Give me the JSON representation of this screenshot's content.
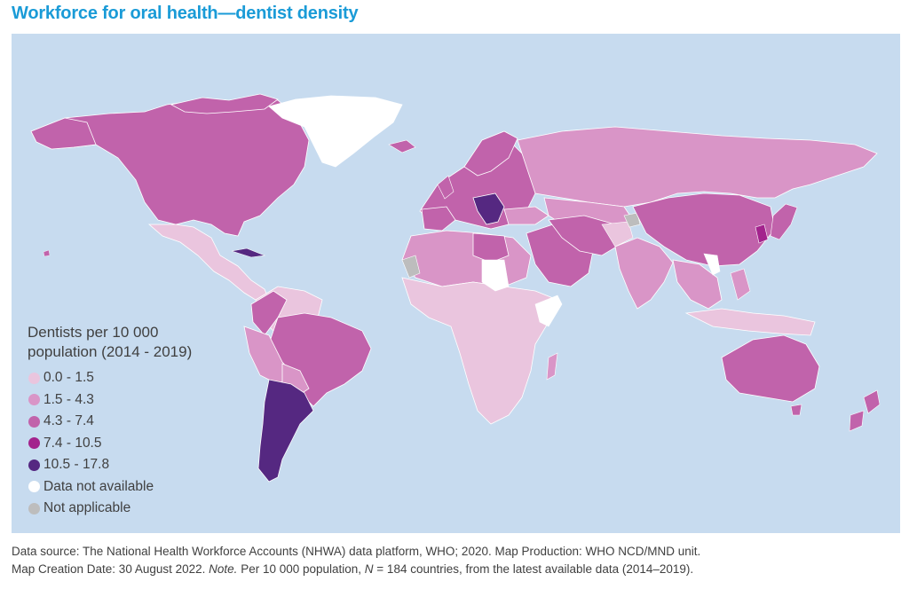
{
  "title": "Workforce for oral health—dentist density",
  "legend": {
    "title_line1": "Dentists per 10 000",
    "title_line2": "population (2014 - 2019)",
    "items": [
      {
        "label": "0.0 - 1.5",
        "color": "#eac5de"
      },
      {
        "label": "1.5 - 4.3",
        "color": "#d995c7"
      },
      {
        "label": "4.3 - 7.4",
        "color": "#c163ab"
      },
      {
        "label": "7.4 - 10.5",
        "color": "#a3238d"
      },
      {
        "label": "10.5 - 17.8",
        "color": "#552881"
      },
      {
        "label": "Data not available",
        "color": "#ffffff"
      },
      {
        "label": "Not applicable",
        "color": "#bdbdbd"
      }
    ]
  },
  "colors": {
    "ocean": "#c7dbef",
    "title": "#1a9bd7",
    "class_0_1_5": "#eac5de",
    "class_1_5_4_3": "#d995c7",
    "class_4_3_7_4": "#c163ab",
    "class_7_4_10_5": "#a3238d",
    "class_10_5_17_8": "#552881",
    "no_data": "#ffffff",
    "not_applicable": "#bdbdbd"
  },
  "source": {
    "line1": "Data source: The National Health Workforce Accounts (NHWA) data platform, WHO; 2020.  Map Production: WHO NCD/MND unit.",
    "line2_a": "Map Creation Date: 30 August 2022.  ",
    "note_label": "Note.",
    "line2_b": " Per 10 000 population, ",
    "n_var": "N",
    "line2_c": " = 184 countries, from the latest available data (2014–2019)."
  }
}
